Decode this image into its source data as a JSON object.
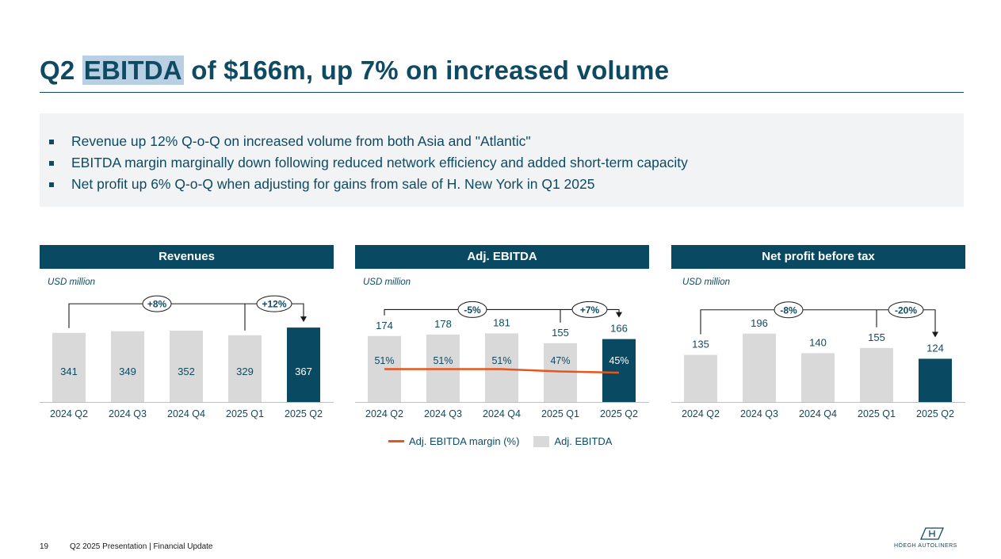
{
  "slide": {
    "title_prefix": "Q2 ",
    "title_highlight": "EBITDA",
    "title_suffix": " of $166m, up 7% on increased volume",
    "bullets": [
      "Revenue up 12% Q-o-Q on increased volume from both Asia and \"Atlantic\"",
      "EBITDA margin marginally down following reduced network efficiency and added short-term capacity",
      "Net profit up 6% Q-o-Q when adjusting for gains from sale of H. New York in Q1 2025"
    ],
    "footer_page": "19",
    "footer_text": "Q2 2025 Presentation | Financial Update",
    "logo_text": "HÖEGH AUTOLINERS"
  },
  "colors": {
    "primary": "#094a62",
    "bar_grey": "#d9d9da",
    "highlight_bar": "#094a62",
    "margin_line": "#e8541e",
    "bullet_bg": "#f1f3f4"
  },
  "chart_data": [
    {
      "type": "bar",
      "title": "Revenues",
      "units": "USD million",
      "categories": [
        "2024 Q2",
        "2024 Q3",
        "2024 Q4",
        "2025 Q1",
        "2025 Q2"
      ],
      "values": [
        341,
        349,
        352,
        329,
        367
      ],
      "labels": [
        "341",
        "349",
        "352",
        "329",
        "367"
      ],
      "highlight_index": 4,
      "value_labels_inside": true,
      "ylim": [
        0,
        430
      ],
      "annotations": [
        {
          "label": "+8%",
          "from": 0,
          "to": 4
        },
        {
          "label": "+12%",
          "from": 3,
          "to": 4
        }
      ]
    },
    {
      "type": "bar",
      "title": "Adj. EBITDA",
      "units": "USD million",
      "categories": [
        "2024 Q2",
        "2024 Q3",
        "2024 Q4",
        "2025 Q1",
        "2025 Q2"
      ],
      "values": [
        174,
        178,
        181,
        155,
        166
      ],
      "labels": [
        "174",
        "178",
        "181",
        "155",
        "166"
      ],
      "highlight_index": 4,
      "value_labels_inside": false,
      "ylim": [
        0,
        230
      ],
      "margin_series": {
        "name": "Adj. EBITDA margin (%)",
        "values": [
          51,
          51,
          51,
          47,
          45
        ],
        "labels": [
          "51%",
          "51%",
          "51%",
          "47%",
          "45%"
        ]
      },
      "legend": [
        "Adj. EBITDA margin (%)",
        "Adj. EBITDA"
      ],
      "annotations": [
        {
          "label": "-5%",
          "from": 0,
          "to": 4
        },
        {
          "label": "+7%",
          "from": 3,
          "to": 4
        }
      ]
    },
    {
      "type": "bar",
      "title": "Net profit before tax",
      "units": "USD million",
      "categories": [
        "2024 Q2",
        "2024 Q3",
        "2024 Q4",
        "2025 Q1",
        "2025 Q2"
      ],
      "values": [
        135,
        196,
        140,
        155,
        124
      ],
      "labels": [
        "135",
        "196",
        "140",
        "155",
        "124"
      ],
      "highlight_index": 4,
      "value_labels_inside": false,
      "ylim": [
        0,
        250
      ],
      "annotations": [
        {
          "label": "-8%",
          "from": 0,
          "to": 4
        },
        {
          "label": "-20%",
          "from": 3,
          "to": 4
        }
      ]
    }
  ]
}
